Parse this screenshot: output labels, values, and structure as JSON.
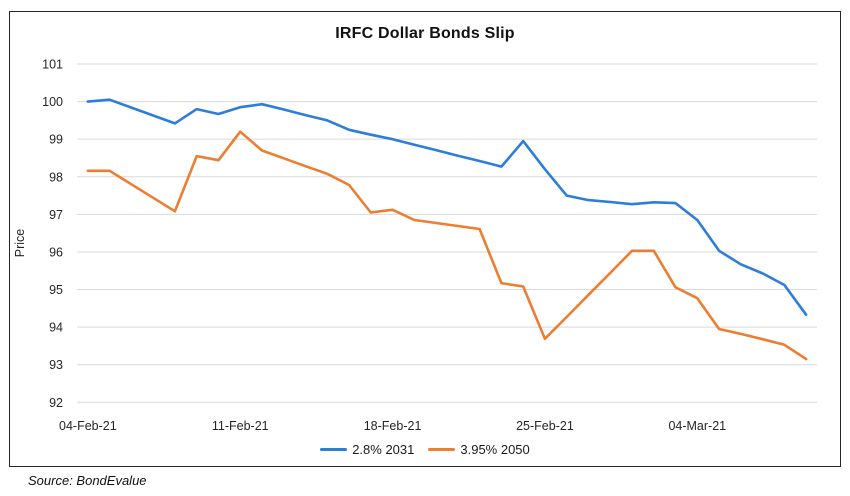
{
  "title": "IRFC Dollar Bonds Slip",
  "source_note": "Source: BondEvalue",
  "chart_data": {
    "type": "line",
    "title": "IRFC Dollar Bonds Slip",
    "xlabel": "",
    "ylabel": "Price",
    "ylim": [
      92,
      101
    ],
    "grid": true,
    "legend_position": "bottom-center",
    "y_ticks": [
      101,
      100,
      99,
      98,
      97,
      96,
      95,
      94,
      93,
      92
    ],
    "x": [
      "04-Feb-21",
      "05-Feb-21",
      "06-Feb-21",
      "07-Feb-21",
      "08-Feb-21",
      "09-Feb-21",
      "10-Feb-21",
      "11-Feb-21",
      "12-Feb-21",
      "13-Feb-21",
      "14-Feb-21",
      "15-Feb-21",
      "16-Feb-21",
      "17-Feb-21",
      "18-Feb-21",
      "19-Feb-21",
      "20-Feb-21",
      "21-Feb-21",
      "22-Feb-21",
      "23-Feb-21",
      "24-Feb-21",
      "25-Feb-21",
      "26-Feb-21",
      "27-Feb-21",
      "28-Feb-21",
      "01-Mar-21",
      "02-Mar-21",
      "03-Mar-21",
      "04-Mar-21",
      "05-Mar-21",
      "06-Mar-21",
      "07-Mar-21",
      "08-Mar-21",
      "09-Mar-21"
    ],
    "x_ticks": [
      {
        "index": 0,
        "label": "04-Feb-21"
      },
      {
        "index": 7,
        "label": "11-Feb-21"
      },
      {
        "index": 14,
        "label": "18-Feb-21"
      },
      {
        "index": 21,
        "label": "25-Feb-21"
      },
      {
        "index": 28,
        "label": "04-Mar-21"
      }
    ],
    "series": [
      {
        "name": "2.8% 2031",
        "color": "#2D7DDB",
        "values": [
          100.0,
          100.05,
          99.84,
          99.63,
          99.42,
          99.8,
          99.67,
          99.85,
          99.93,
          99.79,
          99.64,
          99.5,
          99.25,
          99.12,
          99.0,
          98.85,
          98.71,
          98.56,
          98.42,
          98.27,
          98.95,
          98.2,
          97.5,
          97.38,
          97.33,
          97.27,
          97.32,
          97.3,
          96.85,
          96.03,
          95.67,
          95.43,
          95.12,
          94.33
        ]
      },
      {
        "name": "3.95% 2050",
        "color": "#ED7D31",
        "values": [
          98.16,
          98.16,
          97.8,
          97.44,
          97.08,
          98.55,
          98.44,
          99.2,
          98.7,
          98.49,
          98.28,
          98.08,
          97.78,
          97.05,
          97.12,
          96.85,
          96.77,
          96.69,
          96.61,
          95.17,
          95.08,
          93.69,
          94.27,
          94.86,
          95.44,
          96.03,
          96.03,
          95.06,
          94.77,
          93.95,
          93.82,
          93.68,
          93.53,
          93.15
        ]
      }
    ],
    "colors": {
      "gridline": "#D9D9D9",
      "axis_text": "#262626",
      "frame_border": "#262626",
      "title_text": "#111111"
    }
  },
  "legend": {
    "items": [
      {
        "label": "2.8% 2031"
      },
      {
        "label": "3.95% 2050"
      }
    ]
  }
}
